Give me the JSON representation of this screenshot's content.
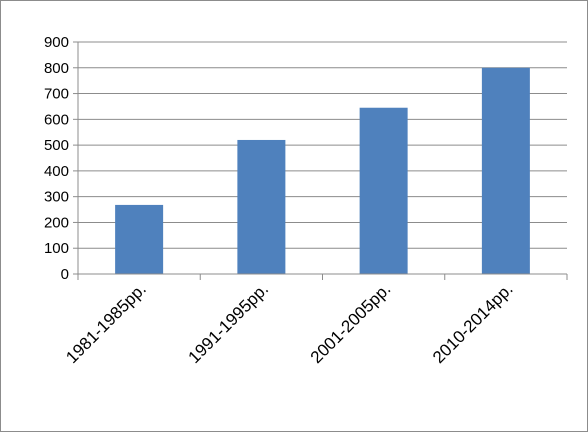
{
  "chart_data": {
    "type": "bar",
    "categories": [
      "1981-1985pp.",
      "1991-1995pp.",
      "2001-2005pp.",
      "2010-2014pp."
    ],
    "values": [
      268,
      520,
      645,
      800
    ],
    "yticks": [
      "0",
      "100",
      "200",
      "300",
      "400",
      "500",
      "600",
      "700",
      "800",
      "900"
    ],
    "ylim": [
      0,
      900
    ],
    "title": "",
    "xlabel": "",
    "ylabel": "",
    "grid": true,
    "legend": "none",
    "bar_color": "#4f81bd"
  }
}
